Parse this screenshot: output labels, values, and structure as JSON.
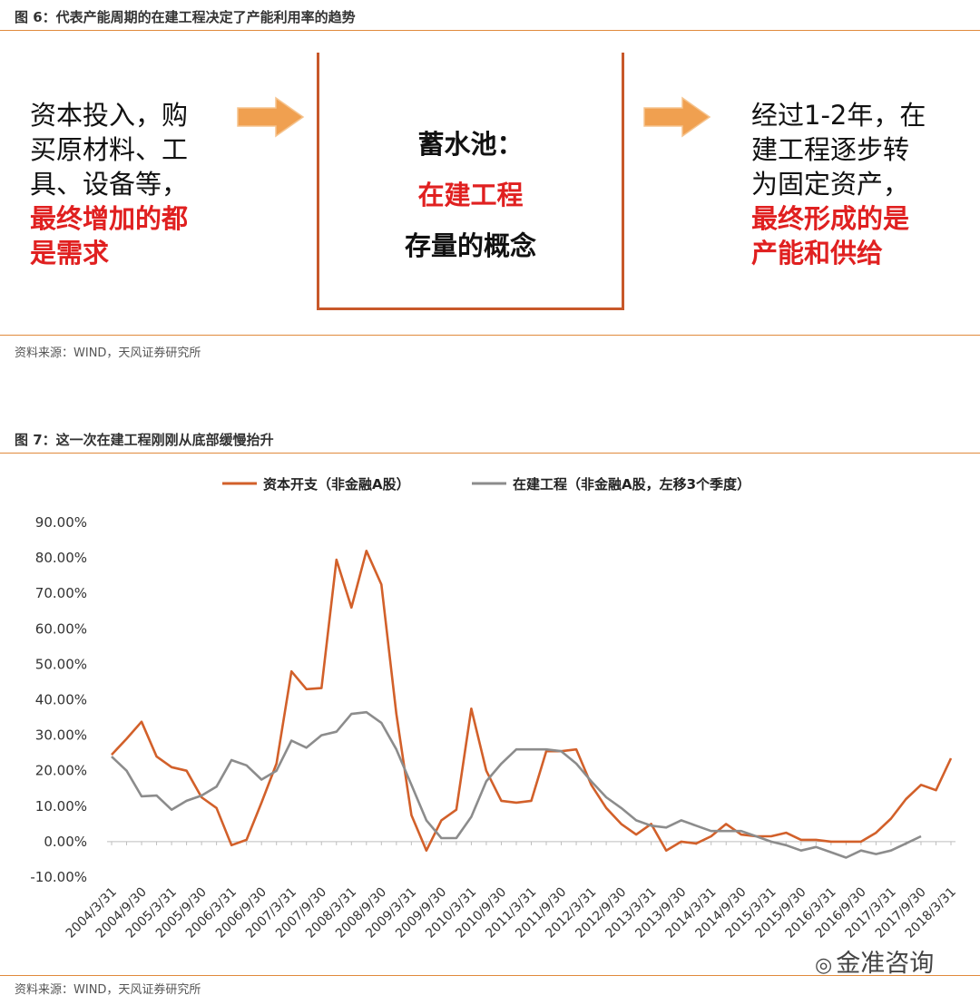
{
  "figure6": {
    "title": "图 6：代表产能周期的在建工程决定了产能利用率的趋势",
    "left_plain": [
      "资本投入，购",
      "买原材料、工",
      "具、设备等，"
    ],
    "left_red": [
      "最终增加的都",
      "是需求"
    ],
    "reservoir_label": "蓄水池：",
    "reservoir_red": "在建工程",
    "reservoir_sub": "存量的概念",
    "right_plain": [
      "经过1-2年，在",
      "建工程逐步转",
      "为固定资产，"
    ],
    "right_red": [
      "最终形成的是",
      "产能和供给"
    ],
    "source": "资料来源：WIND，天风证券研究所",
    "colors": {
      "arrow": "#f0a050",
      "box": "#c8582a",
      "red_text": "#e02020"
    },
    "icons": [
      "right-arrow-icon",
      "right-arrow-icon"
    ]
  },
  "figure7": {
    "title": "图 7：这一次在建工程刚刚从底部缓慢抬升",
    "source": "资料来源：WIND，天风证券研究所"
  },
  "watermark": {
    "text": "金准咨询",
    "icon": "wechat-icon"
  },
  "chart_data": {
    "type": "line",
    "title": "",
    "xlabel": "",
    "ylabel": "",
    "ylim": [
      -10,
      90
    ],
    "yticks": [
      "90.00%",
      "80.00%",
      "70.00%",
      "60.00%",
      "50.00%",
      "40.00%",
      "30.00%",
      "20.00%",
      "10.00%",
      "0.00%",
      "-10.00%"
    ],
    "grid": false,
    "legend": "top",
    "x": [
      "2004/3/31",
      "2004/6/30",
      "2004/9/30",
      "2004/12/31",
      "2005/3/31",
      "2005/6/30",
      "2005/9/30",
      "2005/12/31",
      "2006/3/31",
      "2006/6/30",
      "2006/9/30",
      "2006/12/31",
      "2007/3/31",
      "2007/6/30",
      "2007/9/30",
      "2007/12/31",
      "2008/3/31",
      "2008/6/30",
      "2008/9/30",
      "2008/12/31",
      "2009/3/31",
      "2009/6/30",
      "2009/9/30",
      "2009/12/31",
      "2010/3/31",
      "2010/6/30",
      "2010/9/30",
      "2010/12/31",
      "2011/3/31",
      "2011/6/30",
      "2011/9/30",
      "2011/12/31",
      "2012/3/31",
      "2012/6/30",
      "2012/9/30",
      "2012/12/31",
      "2013/3/31",
      "2013/6/30",
      "2013/9/30",
      "2013/12/31",
      "2014/3/31",
      "2014/6/30",
      "2014/9/30",
      "2014/12/31",
      "2015/3/31",
      "2015/6/30",
      "2015/9/30",
      "2015/12/31",
      "2016/3/31",
      "2016/6/30",
      "2016/9/30",
      "2016/12/31",
      "2017/3/31",
      "2017/6/30",
      "2017/9/30",
      "2017/12/31",
      "2018/3/31"
    ],
    "xticks_shown": [
      "2004/3/31",
      "2004/9/30",
      "2005/3/31",
      "2005/9/30",
      "2006/3/31",
      "2006/9/30",
      "2007/3/31",
      "2007/9/30",
      "2008/3/31",
      "2008/9/30",
      "2009/3/31",
      "2009/9/30",
      "2010/3/31",
      "2010/9/30",
      "2011/3/31",
      "2011/9/30",
      "2012/3/31",
      "2012/9/30",
      "2013/3/31",
      "2013/9/30",
      "2014/3/31",
      "2014/9/30",
      "2015/3/31",
      "2015/9/30",
      "2016/3/31",
      "2016/9/30",
      "2017/3/31",
      "2017/9/30",
      "2018/3/31"
    ],
    "series": [
      {
        "name": "资本开支（非金融A股）",
        "color": "#d2602a",
        "values": [
          24.5,
          29,
          33.8,
          24,
          21,
          20,
          12.5,
          9.5,
          -1,
          0.5,
          11,
          22,
          48,
          43,
          43.3,
          79.5,
          66,
          82,
          72.5,
          36,
          7.5,
          -2.5,
          6,
          9,
          37.5,
          20,
          11.5,
          11,
          11.5,
          25.5,
          25.5,
          26,
          16,
          9.5,
          5,
          2,
          5,
          -2.5,
          0,
          -0.5,
          1.5,
          5,
          2,
          1.5,
          1.5,
          2.5,
          0.5,
          0.5,
          0,
          0,
          0,
          2.5,
          6.5,
          12,
          16,
          14.5,
          23.5
        ]
      },
      {
        "name": "在建工程（非金融A股，左移3个季度）",
        "color": "#8c8c8c",
        "values": [
          24,
          20,
          12.8,
          13,
          9,
          11.5,
          13,
          15.5,
          23,
          21.5,
          17.5,
          20,
          28.5,
          26.5,
          30,
          31,
          36,
          36.5,
          33.5,
          26,
          16,
          6,
          1,
          1,
          7,
          17,
          22,
          26,
          26,
          26,
          25.5,
          22,
          17,
          12.5,
          9.5,
          6,
          4.5,
          4,
          6,
          4.5,
          3,
          3,
          3,
          1.5,
          0,
          -1,
          -2.5,
          -1.5,
          -3,
          -4.5,
          -2.5,
          -3.5,
          -2.5,
          -0.5,
          1.5,
          null,
          null
        ]
      }
    ]
  }
}
